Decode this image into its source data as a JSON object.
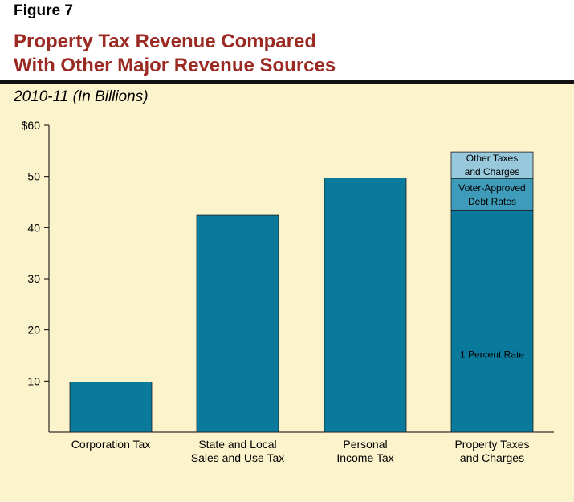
{
  "figure": {
    "label": "Figure 7"
  },
  "title": {
    "line1": "Property Tax Revenue Compared",
    "line2": "With Other Major Revenue Sources"
  },
  "subtitle": "2010-11 (In Billions)",
  "colors": {
    "bar": "#0a7a9c",
    "bar_mid": "#3e9cba",
    "bar_light": "#98c8dc",
    "title": "#9b2a23",
    "panel": "#fbf3cc"
  },
  "chart_data": {
    "type": "bar",
    "stacked": true,
    "title": "Property Tax Revenue Compared With Other Major Revenue Sources",
    "subtitle": "2010-11 (In Billions)",
    "xlabel": "",
    "ylabel": "",
    "ylim": [
      0,
      60
    ],
    "yticks": [
      {
        "value": 10,
        "label": "10"
      },
      {
        "value": 20,
        "label": "20"
      },
      {
        "value": 30,
        "label": "30"
      },
      {
        "value": 40,
        "label": "40"
      },
      {
        "value": 50,
        "label": "50"
      },
      {
        "value": 60,
        "label": "$60"
      }
    ],
    "categories": [
      {
        "lines": [
          "Corporation Tax"
        ]
      },
      {
        "lines": [
          "State and Local",
          "Sales and Use Tax"
        ]
      },
      {
        "lines": [
          "Personal",
          "Income Tax"
        ]
      },
      {
        "lines": [
          "Property Taxes",
          "and Charges"
        ]
      }
    ],
    "series": [
      {
        "name": "1 Percent Rate",
        "label_lines": [
          "1 Percent Rate"
        ],
        "color": "#0a7a9c",
        "text_color": "#000000",
        "values": [
          9.8,
          42.4,
          49.7,
          43.3
        ]
      },
      {
        "name": "Voter-Approved Debt Rates",
        "label_lines": [
          "Voter-Approved",
          "Debt Rates"
        ],
        "color": "#3e9cba",
        "text_color": "#000000",
        "values": [
          0,
          0,
          0,
          6.3
        ]
      },
      {
        "name": "Other Taxes and Charges",
        "label_lines": [
          "Other Taxes",
          "and Charges"
        ],
        "color": "#98c8dc",
        "text_color": "#000000",
        "values": [
          0,
          0,
          0,
          5.2
        ]
      }
    ],
    "segment_labels_on_bar": [
      3
    ]
  }
}
